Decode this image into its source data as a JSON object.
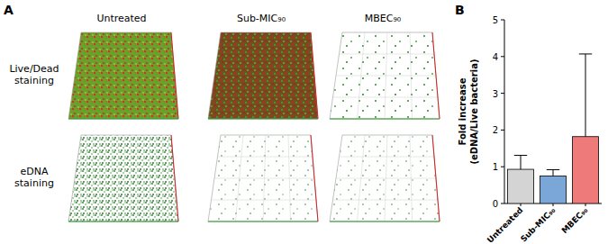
{
  "panel_a": {
    "label": "A",
    "columns": [
      "Untreated",
      "Sub-MIC₉₀",
      "MBEC₉₀"
    ],
    "rows": [
      [
        "Live/Dead",
        "staining"
      ],
      [
        "eDNA",
        "staining"
      ]
    ]
  },
  "chart_data": {
    "type": "bar",
    "panel_label": "B",
    "categories": [
      "Untreated",
      "Sub-MIC₉₀",
      "MBEC₉₀"
    ],
    "values": [
      0.93,
      0.75,
      1.82
    ],
    "errors": [
      0.38,
      0.17,
      2.25
    ],
    "colors": [
      "#d4d4d4",
      "#7aa6d8",
      "#ef7a7a"
    ],
    "ylabel": [
      "Fold increase",
      "(eDNA/Live bacteria)"
    ],
    "ylim": [
      0,
      5
    ],
    "yticks": [
      0,
      1,
      2,
      3,
      4,
      5
    ],
    "grid": false
  }
}
